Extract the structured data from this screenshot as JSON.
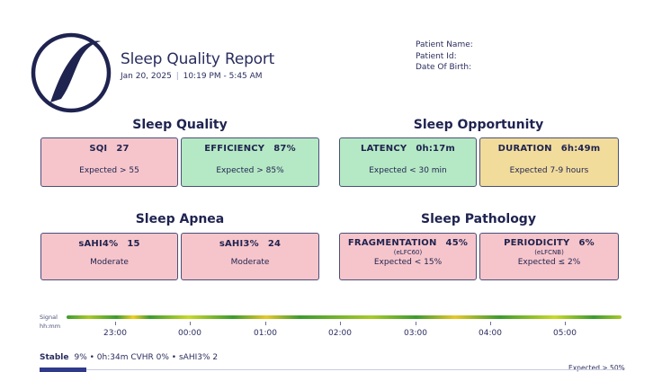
{
  "header": {
    "title": "Sleep Quality Report",
    "date": "Jan 20, 2025",
    "time_range": "10:19 PM - 5:45 AM",
    "separator": "|"
  },
  "patient": {
    "name_label": "Patient Name:",
    "id_label": "Patient Id:",
    "dob_label": "Date Of Birth:"
  },
  "sections": {
    "quality": "Sleep Quality",
    "opportunity": "Sleep Opportunity",
    "apnea": "Sleep Apnea",
    "pathology": "Sleep Pathology"
  },
  "cards": {
    "sqi": {
      "label": "SQI",
      "value": "27",
      "sub": "Expected > 55",
      "status": "red"
    },
    "efficiency": {
      "label": "EFFICIENCY",
      "value": "87%",
      "sub": "Expected > 85%",
      "status": "green"
    },
    "latency": {
      "label": "LATENCY",
      "value": "0h:17m",
      "sub": "Expected < 30 min",
      "status": "green"
    },
    "duration": {
      "label": "DURATION",
      "value": "6h:49m",
      "sub": "Expected 7-9 hours",
      "status": "yellow"
    },
    "sahi4": {
      "label": "sAHI4%",
      "value": "15",
      "sub": "Moderate",
      "status": "red"
    },
    "sahi3": {
      "label": "sAHI3%",
      "value": "24",
      "sub": "Moderate",
      "status": "red"
    },
    "fragmentation": {
      "label": "FRAGMENTATION",
      "value": "45%",
      "note": "(eLFC60)",
      "sub": "Expected < 15%",
      "status": "red"
    },
    "periodicity": {
      "label": "PERIODICITY",
      "value": "6%",
      "note": "(eLFCNB)",
      "sub": "Expected ≤ 2%",
      "status": "red"
    }
  },
  "timeline": {
    "signal_label": "Signal",
    "hhmm_label": "hh:mm",
    "ticks": [
      "23:00",
      "00:00",
      "01:00",
      "02:00",
      "03:00",
      "04:00",
      "05:00"
    ]
  },
  "stats": {
    "stable_label": "Stable",
    "stable_text": "9% • 0h:34m  CVHR 0% • sAHI3% 2",
    "expected_right": "Expected > 50%"
  },
  "colors": {
    "red": "#f6c5cb",
    "green": "#b5e8c4",
    "yellow": "#f2dc9b",
    "navy": "#2a2d5e"
  }
}
